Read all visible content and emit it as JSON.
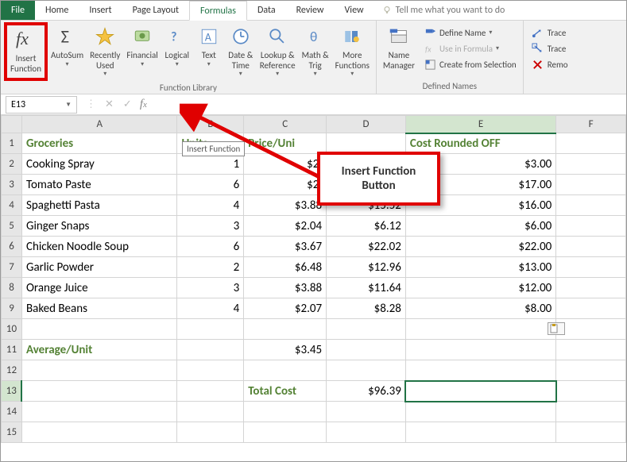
{
  "tabs": {
    "file": "File",
    "home": "Home",
    "insert": "Insert",
    "pagelayout": "Page Layout",
    "formulas": "Formulas",
    "data": "Data",
    "review": "Review",
    "view": "View",
    "tellme": "Tell me what you want to do"
  },
  "ribbon": {
    "insertFunction": "Insert\nFunction",
    "autosum": "AutoSum",
    "recentlyUsed": "Recently\nUsed",
    "financial": "Financial",
    "logical": "Logical",
    "text": "Text",
    "dateTime": "Date &\nTime",
    "lookupRef": "Lookup &\nReference",
    "mathTrig": "Math &\nTrig",
    "moreFun": "More\nFunctions",
    "groupLibrary": "Function Library",
    "nameManager": "Name\nManager",
    "defineName": "Define Name",
    "useInFormula": "Use in Formula",
    "createFromSel": "Create from Selection",
    "groupDefined": "Defined Names",
    "trace1": "Trace",
    "trace2": "Trace",
    "remo": "Remo"
  },
  "nameBox": "E13",
  "tooltip": "Insert Function",
  "callout": "Insert Function Button",
  "headers": {
    "A": "A",
    "B": "B",
    "C": "C",
    "D": "D",
    "E": "E",
    "F": "F"
  },
  "colHeaders": {
    "a": "Groceries",
    "b": "Units",
    "c": "Price/Uni",
    "e": "Cost Rounded OFF"
  },
  "rows": [
    {
      "a": "Cooking Spray",
      "b": "1",
      "c": "$2.",
      "d": "",
      "e": "$3.00"
    },
    {
      "a": "Tomato Paste",
      "b": "6",
      "c": "$2.",
      "d": "",
      "e": "$17.00"
    },
    {
      "a": "Spaghetti Pasta",
      "b": "4",
      "c": "$3.88",
      "d": "$15.52",
      "e": "$16.00"
    },
    {
      "a": "Ginger Snaps",
      "b": "3",
      "c": "$2.04",
      "d": "$6.12",
      "e": "$6.00"
    },
    {
      "a": "Chicken Noodle Soup",
      "b": "6",
      "c": "$3.67",
      "d": "$22.02",
      "e": "$22.00"
    },
    {
      "a": "Garlic Powder",
      "b": "2",
      "c": "$6.48",
      "d": "$12.96",
      "e": "$13.00"
    },
    {
      "a": "Orange Juice",
      "b": "3",
      "c": "$3.88",
      "d": "$11.64",
      "e": "$12.00"
    },
    {
      "a": "Baked Beans",
      "b": "4",
      "c": "$2.07",
      "d": "$8.28",
      "e": "$8.00"
    }
  ],
  "avgLabel": "Average/Unit",
  "avgVal": "$3.45",
  "totalLabel": "Total Cost",
  "totalVal": "$96.39",
  "colors": {
    "accent": "#217346",
    "highlight": "#e00000",
    "header": "#548235"
  }
}
